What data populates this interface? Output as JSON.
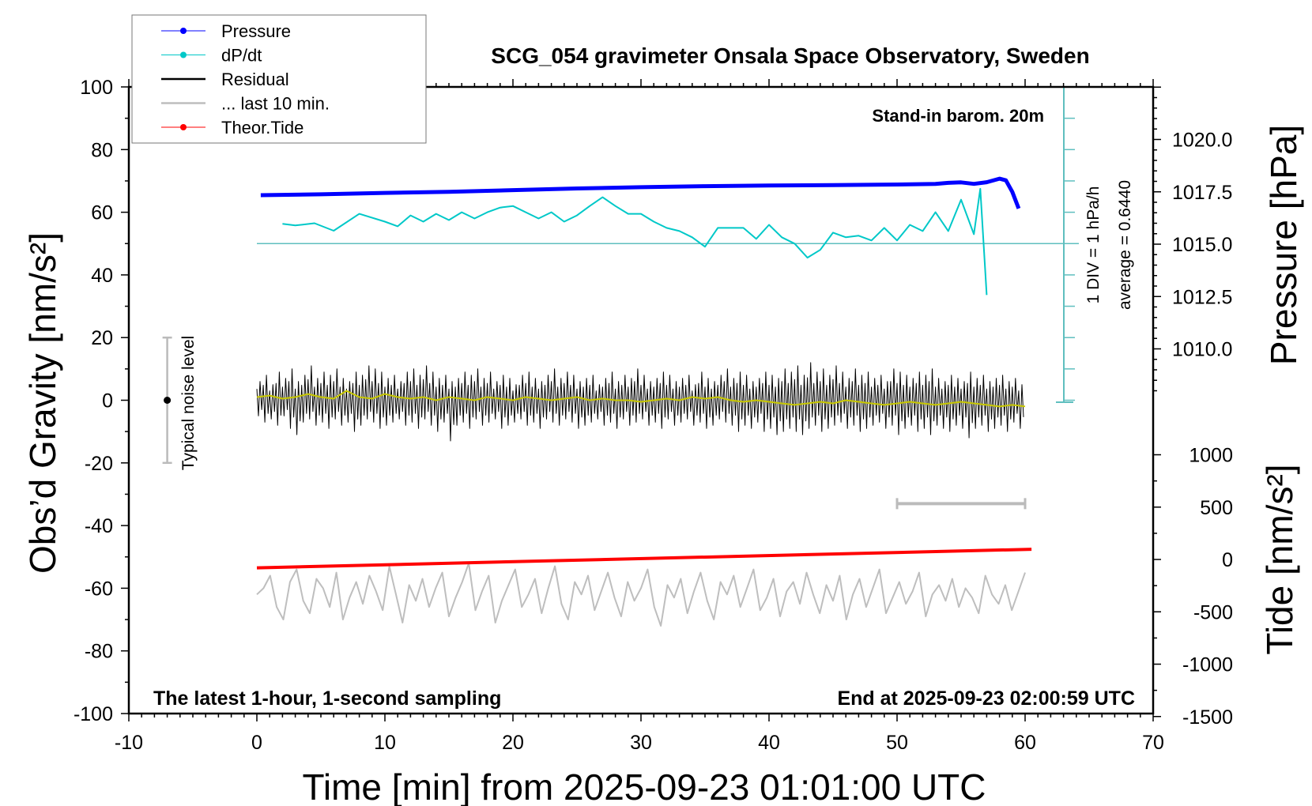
{
  "chart_data": {
    "type": "line",
    "title": "SCG_054 gravimeter Onsala Space Observatory, Sweden",
    "xlabel": "Time [min] from 2025-09-23 01:01:00 UTC",
    "ylabel": "Obs’d Gravity [nm/s²]",
    "y2label": "Pressure [hPa]",
    "y3label": "Tide [nm/s²]",
    "xlim": [
      -10,
      70
    ],
    "ylim": [
      -100,
      100
    ],
    "xticks": [
      "-10",
      "0",
      "10",
      "20",
      "30",
      "40",
      "50",
      "60",
      "70"
    ],
    "yticks": [
      "100",
      "80",
      "60",
      "40",
      "20",
      "0",
      "-20",
      "-40",
      "-60",
      "-80",
      "-100"
    ],
    "pressure_ticks": [
      "1020.0",
      "1017.5",
      "1015.0",
      "1012.5",
      "1010.0"
    ],
    "tide_ticks": [
      "1000",
      "500",
      "0",
      "-500",
      "-1000",
      "-1500"
    ],
    "grid": false,
    "legend_position": "top-left",
    "legend": [
      {
        "label": "Pressure",
        "color": "#0000ff",
        "marker": "dot"
      },
      {
        "label": "dP/dt",
        "color": "#00c8c8",
        "marker": "dot"
      },
      {
        "label": "Residual",
        "color": "#000000",
        "marker": "line"
      },
      {
        "label": "... last 10 min.",
        "color": "#bebebe",
        "marker": "line"
      },
      {
        "label": "Theor.Tide",
        "color": "#ff0000",
        "marker": "dot"
      }
    ],
    "annotations": {
      "barometer": "Stand-in barom. 20m",
      "sampling": "The latest 1-hour, 1-second sampling",
      "end_time": "End at 2025-09-23 02:00:59 UTC",
      "div_scale": "1 DIV = 1 hPa/h",
      "average": "average = 0.6440",
      "noise_label": "Typical noise level"
    },
    "noise_level": {
      "x": -7,
      "range": [
        -20,
        20
      ]
    },
    "last10_scale_bar": {
      "x": [
        50,
        60
      ],
      "y": -33
    },
    "dpdt_baseline_gravity": 50,
    "series": {
      "pressure_hpa": [
        [
          0.3,
          1017.34
        ],
        [
          5,
          1017.38
        ],
        [
          10,
          1017.45
        ],
        [
          15,
          1017.5
        ],
        [
          20,
          1017.58
        ],
        [
          25,
          1017.66
        ],
        [
          30,
          1017.72
        ],
        [
          35,
          1017.77
        ],
        [
          40,
          1017.8
        ],
        [
          45,
          1017.82
        ],
        [
          50,
          1017.85
        ],
        [
          53,
          1017.88
        ],
        [
          54,
          1017.93
        ],
        [
          55,
          1017.95
        ],
        [
          56,
          1017.88
        ],
        [
          57,
          1017.96
        ],
        [
          58,
          1018.13
        ],
        [
          58.5,
          1018.05
        ],
        [
          59,
          1017.5
        ],
        [
          59.5,
          1016.7
        ]
      ],
      "dpdt_hpa_per_h": [
        [
          2,
          0.63
        ],
        [
          3,
          0.58
        ],
        [
          4.5,
          0.65
        ],
        [
          6,
          0.41
        ],
        [
          8,
          0.95
        ],
        [
          10,
          0.7
        ],
        [
          11,
          0.55
        ],
        [
          12,
          0.9
        ],
        [
          13,
          0.7
        ],
        [
          14,
          0.95
        ],
        [
          15,
          0.75
        ],
        [
          16,
          1.0
        ],
        [
          17,
          0.8
        ],
        [
          18,
          1.0
        ],
        [
          19,
          1.15
        ],
        [
          20,
          1.2
        ],
        [
          21,
          1.0
        ],
        [
          22,
          0.8
        ],
        [
          23,
          1.0
        ],
        [
          24,
          0.7
        ],
        [
          25,
          0.9
        ],
        [
          26,
          1.2
        ],
        [
          27,
          1.48
        ],
        [
          28,
          1.2
        ],
        [
          29,
          0.95
        ],
        [
          30,
          0.95
        ],
        [
          31,
          0.7
        ],
        [
          32,
          0.5
        ],
        [
          33,
          0.4
        ],
        [
          34,
          0.2
        ],
        [
          35,
          -0.1
        ],
        [
          36,
          0.5
        ],
        [
          37,
          0.5
        ],
        [
          38,
          0.5
        ],
        [
          39,
          0.15
        ],
        [
          40,
          0.6
        ],
        [
          41,
          0.2
        ],
        [
          42,
          0.0
        ],
        [
          43,
          -0.45
        ],
        [
          44,
          -0.2
        ],
        [
          45,
          0.35
        ],
        [
          46,
          0.2
        ],
        [
          47,
          0.25
        ],
        [
          48,
          0.1
        ],
        [
          49,
          0.5
        ],
        [
          50,
          0.1
        ],
        [
          51,
          0.6
        ],
        [
          52,
          0.4
        ],
        [
          53,
          1.0
        ],
        [
          54,
          0.4
        ],
        [
          55,
          1.4
        ],
        [
          56,
          0.3
        ],
        [
          56.5,
          1.75
        ],
        [
          57,
          -1.64
        ]
      ],
      "residual_envelope_max": [
        6,
        8,
        5,
        9,
        7,
        10,
        6,
        8,
        11,
        7,
        9,
        8,
        10,
        7,
        6,
        9,
        8,
        11,
        10,
        9,
        7,
        8,
        6,
        9,
        10,
        8,
        11,
        9,
        7,
        8,
        6,
        7,
        9,
        8,
        10,
        7,
        9,
        6,
        8,
        7,
        5,
        8,
        9,
        7,
        6,
        8,
        10,
        7,
        9,
        8,
        6,
        7,
        8,
        5,
        7,
        9,
        6,
        8,
        7,
        10,
        8,
        6,
        7,
        9,
        8,
        6,
        7,
        8,
        5,
        9,
        7,
        6,
        8,
        10,
        7,
        9,
        8,
        6,
        7,
        9,
        8,
        7,
        10,
        9,
        11,
        8,
        12,
        9,
        10,
        8,
        11,
        9,
        7,
        10,
        8,
        9,
        7,
        8,
        6,
        10,
        9,
        8,
        7,
        9,
        8,
        10,
        7,
        6,
        8,
        7,
        6,
        9,
        7,
        8,
        6,
        7,
        8,
        6,
        7,
        5
      ],
      "residual_envelope_min": [
        -5,
        -7,
        -6,
        -8,
        -5,
        -9,
        -11,
        -7,
        -6,
        -8,
        -7,
        -9,
        -6,
        -8,
        -7,
        -10,
        -8,
        -6,
        -7,
        -9,
        -8,
        -7,
        -6,
        -8,
        -7,
        -9,
        -6,
        -8,
        -10,
        -7,
        -13,
        -8,
        -7,
        -9,
        -6,
        -8,
        -7,
        -6,
        -9,
        -8,
        -7,
        -6,
        -8,
        -7,
        -9,
        -6,
        -7,
        -8,
        -6,
        -7,
        -9,
        -8,
        -7,
        -6,
        -8,
        -7,
        -9,
        -6,
        -8,
        -7,
        -6,
        -8,
        -7,
        -9,
        -6,
        -8,
        -7,
        -6,
        -8,
        -7,
        -9,
        -8,
        -6,
        -7,
        -8,
        -10,
        -8,
        -9,
        -7,
        -10,
        -9,
        -11,
        -10,
        -9,
        -10,
        -11,
        -9,
        -8,
        -10,
        -9,
        -8,
        -7,
        -9,
        -8,
        -10,
        -9,
        -8,
        -7,
        -9,
        -8,
        -11,
        -9,
        -8,
        -10,
        -9,
        -11,
        -8,
        -9,
        -10,
        -8,
        -9,
        -12,
        -9,
        -8,
        -10,
        -9,
        -8,
        -10,
        -7,
        -9
      ],
      "residual_smoothed": [
        1,
        1.5,
        0.5,
        1,
        2,
        1,
        0.5,
        3,
        1,
        0.5,
        2,
        1,
        0.5,
        1,
        0,
        1,
        0.5,
        0,
        1,
        0.5,
        0,
        1,
        0.5,
        0,
        0.5,
        1,
        0,
        0.5,
        0,
        0,
        -0.5,
        0,
        0.5,
        0,
        1,
        0.5,
        1,
        0,
        -0.5,
        0,
        -0.5,
        -1,
        -1.5,
        -1,
        -0.5,
        -1,
        0,
        -0.5,
        -1,
        -1.5,
        -1,
        -0.5,
        -1,
        -1.5,
        -1,
        -0.5,
        -1,
        -1.5,
        -2,
        -1.5,
        -2
      ],
      "last10_gravity": [
        -62,
        -60,
        -56,
        -66,
        -70,
        -58,
        -54,
        -64,
        -68,
        -57,
        -60,
        -66,
        -55,
        -70,
        -63,
        -58,
        -65,
        -56,
        -61,
        -67,
        -53,
        -62,
        -71,
        -59,
        -64,
        -57,
        -66,
        -60,
        -55,
        -69,
        -63,
        -58,
        -52,
        -67,
        -61,
        -56,
        -71,
        -64,
        -59,
        -54,
        -66,
        -62,
        -57,
        -68,
        -60,
        -53,
        -65,
        -70,
        -58,
        -62,
        -56,
        -67,
        -61,
        -55,
        -63,
        -69,
        -58,
        -64,
        -60,
        -54,
        -66,
        -72,
        -59,
        -63,
        -57,
        -68,
        -61,
        -55,
        -64,
        -70,
        -58,
        -62,
        -56,
        -66,
        -60,
        -54,
        -67,
        -63,
        -57,
        -69,
        -61,
        -58,
        -65,
        -55,
        -62,
        -68,
        -59,
        -64,
        -56,
        -70,
        -62,
        -57,
        -66,
        -60,
        -54,
        -68,
        -63,
        -58,
        -65,
        -61,
        -55,
        -69,
        -62,
        -59,
        -64,
        -57,
        -66,
        -60,
        -63,
        -68,
        -56,
        -62,
        -65,
        -59,
        -67,
        -61,
        -55
      ],
      "theor_tide_nm_s2": [
        [
          0,
          -80
        ],
        [
          60.5,
          97
        ]
      ]
    }
  }
}
